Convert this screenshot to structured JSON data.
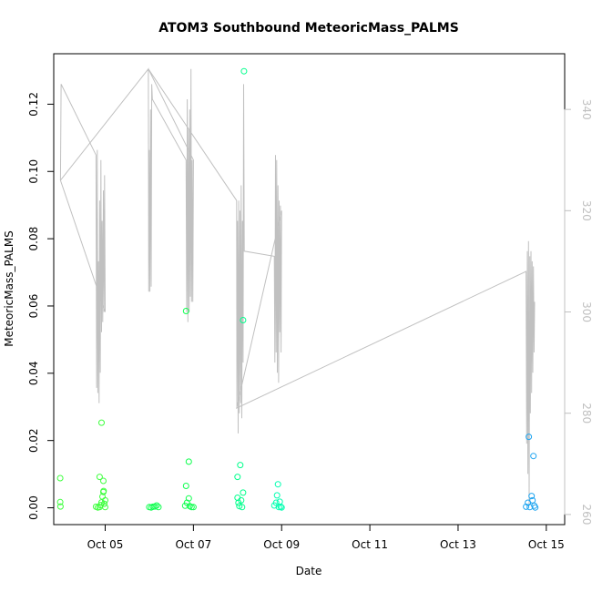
{
  "chart_data": {
    "type": "scatter",
    "title": "ATOM3 Southbound MeteoricMass_PALMS",
    "xlabel": "Date",
    "ylabel": "MeteoricMass_PALMS",
    "x_ticks": [
      "Oct 05",
      "Oct 07",
      "Oct 09",
      "Oct 11",
      "Oct 13",
      "Oct 15"
    ],
    "xlim": [
      "2017-10-03 20:00",
      "2017-10-15 10:00"
    ],
    "ylim": [
      -0.005,
      0.135
    ],
    "y_ticks": [
      "0.00",
      "0.02",
      "0.04",
      "0.06",
      "0.08",
      "0.10",
      "0.12"
    ],
    "y2lim": [
      258,
      351
    ],
    "y2_ticks": [
      "260",
      "280",
      "300",
      "320",
      "340"
    ],
    "grid": false,
    "legend": "none",
    "colors": {
      "axis": "#000000",
      "secondary_axis": "#c0c0c0",
      "line": "#c0c0c0",
      "point_palette": [
        "#3fff3f",
        "#0fff4f",
        "#00ff8c",
        "#00ffb0",
        "#00e6c8",
        "#1ea4f0"
      ]
    },
    "points": [
      {
        "x": "2017-10-03 23:30",
        "y": 0.0088,
        "color": "#3fff3f"
      },
      {
        "x": "2017-10-03 23:30",
        "y": 0.0017,
        "color": "#3fff3f"
      },
      {
        "x": "2017-10-03 23:40",
        "y": 0.0004,
        "color": "#3fff3f"
      },
      {
        "x": "2017-10-04 19:00",
        "y": 0.0003,
        "color": "#3fff3f"
      },
      {
        "x": "2017-10-04 20:00",
        "y": 0.0001,
        "color": "#3fff3f"
      },
      {
        "x": "2017-10-04 21:00",
        "y": 0.0002,
        "color": "#3fff3f"
      },
      {
        "x": "2017-10-04 21:00",
        "y": 0.0092,
        "color": "#3fff3f"
      },
      {
        "x": "2017-10-04 21:30",
        "y": 0.0008,
        "color": "#3fff3f"
      },
      {
        "x": "2017-10-04 22:00",
        "y": 0.0253,
        "color": "#3fff3f"
      },
      {
        "x": "2017-10-04 22:00",
        "y": 0.0016,
        "color": "#3fff3f"
      },
      {
        "x": "2017-10-04 22:30",
        "y": 0.0033,
        "color": "#3fff3f"
      },
      {
        "x": "2017-10-04 23:00",
        "y": 0.0047,
        "color": "#3fff3f"
      },
      {
        "x": "2017-10-04 23:10",
        "y": 0.005,
        "color": "#3fff3f"
      },
      {
        "x": "2017-10-04 23:00",
        "y": 0.008,
        "color": "#3fff3f"
      },
      {
        "x": "2017-10-04 23:30",
        "y": 0.0012,
        "color": "#3fff3f"
      },
      {
        "x": "2017-10-05 00:00",
        "y": 0.0002,
        "color": "#3fff3f"
      },
      {
        "x": "2017-10-05 00:00",
        "y": 0.0022,
        "color": "#3fff3f"
      },
      {
        "x": "2017-10-06 00:00",
        "y": 0.0002,
        "color": "#0fff4f"
      },
      {
        "x": "2017-10-06 01:00",
        "y": 0.0001,
        "color": "#0fff4f"
      },
      {
        "x": "2017-10-06 02:00",
        "y": 0.0003,
        "color": "#0fff4f"
      },
      {
        "x": "2017-10-06 03:00",
        "y": 0.0004,
        "color": "#0fff4f"
      },
      {
        "x": "2017-10-06 04:00",
        "y": 0.0007,
        "color": "#0fff4f"
      },
      {
        "x": "2017-10-06 05:00",
        "y": 0.0002,
        "color": "#0fff4f"
      },
      {
        "x": "2017-10-06 19:30",
        "y": 0.0006,
        "color": "#0fff4f"
      },
      {
        "x": "2017-10-06 20:00",
        "y": 0.0585,
        "color": "#0fff4f"
      },
      {
        "x": "2017-10-06 20:00",
        "y": 0.0065,
        "color": "#0fff4f"
      },
      {
        "x": "2017-10-06 20:30",
        "y": 0.0015,
        "color": "#0fff4f"
      },
      {
        "x": "2017-10-06 21:30",
        "y": 0.0137,
        "color": "#0fff4f"
      },
      {
        "x": "2017-10-06 21:30",
        "y": 0.0028,
        "color": "#0fff4f"
      },
      {
        "x": "2017-10-06 22:00",
        "y": 0.0005,
        "color": "#0fff4f"
      },
      {
        "x": "2017-10-06 23:00",
        "y": 0.0002,
        "color": "#0fff4f"
      },
      {
        "x": "2017-10-07 00:00",
        "y": 0.0002,
        "color": "#0fff4f"
      },
      {
        "x": "2017-10-08 00:00",
        "y": 0.0092,
        "color": "#00ff8c"
      },
      {
        "x": "2017-10-08 00:00",
        "y": 0.003,
        "color": "#00ff8c"
      },
      {
        "x": "2017-10-08 00:30",
        "y": 0.0015,
        "color": "#00ff8c"
      },
      {
        "x": "2017-10-08 01:00",
        "y": 0.0005,
        "color": "#00ff8c"
      },
      {
        "x": "2017-10-08 01:30",
        "y": 0.0127,
        "color": "#00ff8c"
      },
      {
        "x": "2017-10-08 02:00",
        "y": 0.0022,
        "color": "#00ff8c"
      },
      {
        "x": "2017-10-08 02:30",
        "y": 0.0002,
        "color": "#00ff8c"
      },
      {
        "x": "2017-10-08 03:00",
        "y": 0.0045,
        "color": "#00ff8c"
      },
      {
        "x": "2017-10-08 03:00",
        "y": 0.0558,
        "color": "#00ff8c"
      },
      {
        "x": "2017-10-08 03:30",
        "y": 0.1298,
        "color": "#00ff8c"
      },
      {
        "x": "2017-10-08 20:00",
        "y": 0.0007,
        "color": "#00ffb0"
      },
      {
        "x": "2017-10-08 21:00",
        "y": 0.0015,
        "color": "#00ffb0"
      },
      {
        "x": "2017-10-08 21:30",
        "y": 0.0037,
        "color": "#00ffb0"
      },
      {
        "x": "2017-10-08 22:00",
        "y": 0.007,
        "color": "#00ffb0"
      },
      {
        "x": "2017-10-08 22:30",
        "y": 0.0002,
        "color": "#00ffb0"
      },
      {
        "x": "2017-10-08 23:00",
        "y": 0.0018,
        "color": "#00ffb0"
      },
      {
        "x": "2017-10-08 23:30",
        "y": 0.0003,
        "color": "#00ffb0"
      },
      {
        "x": "2017-10-09 00:00",
        "y": 0.0001,
        "color": "#00ffb0"
      },
      {
        "x": "2017-10-14 13:00",
        "y": 0.0003,
        "color": "#1ea4f0"
      },
      {
        "x": "2017-10-14 14:00",
        "y": 0.0015,
        "color": "#1ea4f0"
      },
      {
        "x": "2017-10-14 14:30",
        "y": 0.0211,
        "color": "#1ea4f0"
      },
      {
        "x": "2017-10-14 15:00",
        "y": 0.0002,
        "color": "#1ea4f0"
      },
      {
        "x": "2017-10-14 16:00",
        "y": 0.0035,
        "color": "#1ea4f0"
      },
      {
        "x": "2017-10-14 16:30",
        "y": 0.0022,
        "color": "#1ea4f0"
      },
      {
        "x": "2017-10-14 17:00",
        "y": 0.0154,
        "color": "#1ea4f0"
      },
      {
        "x": "2017-10-14 17:30",
        "y": 0.0006,
        "color": "#1ea4f0"
      },
      {
        "x": "2017-10-14 18:00",
        "y": 0.0001,
        "color": "#1ea4f0"
      }
    ],
    "line": [
      [
        "2017-10-03 23:40",
        326
      ],
      [
        "2017-10-04 00:00",
        345
      ],
      [
        "2017-10-04 19:00",
        331
      ],
      [
        "2017-10-04 19:20",
        285
      ],
      [
        "2017-10-04 19:40",
        332
      ],
      [
        "2017-10-04 20:00",
        284
      ],
      [
        "2017-10-04 20:20",
        310
      ],
      [
        "2017-10-04 20:40",
        282
      ],
      [
        "2017-10-04 21:00",
        322
      ],
      [
        "2017-10-04 21:20",
        288
      ],
      [
        "2017-10-04 21:40",
        330
      ],
      [
        "2017-10-04 22:00",
        296
      ],
      [
        "2017-10-04 22:20",
        318
      ],
      [
        "2017-10-04 22:40",
        298
      ],
      [
        "2017-10-04 23:00",
        324
      ],
      [
        "2017-10-04 23:20",
        300
      ],
      [
        "2017-10-04 23:40",
        327
      ],
      [
        "2017-10-05 00:00",
        300
      ],
      [
        "2017-10-03 23:40",
        326
      ],
      [
        "2017-10-05 23:30",
        348
      ],
      [
        "2017-10-05 23:40",
        304
      ],
      [
        "2017-10-06 00:00",
        332
      ],
      [
        "2017-10-06 00:20",
        304
      ],
      [
        "2017-10-06 00:40",
        340
      ],
      [
        "2017-10-06 01:00",
        305
      ],
      [
        "2017-10-06 01:20",
        345
      ],
      [
        "2017-10-06 01:40",
        342
      ],
      [
        "2017-10-06 20:00",
        330
      ],
      [
        "2017-10-06 20:20",
        300
      ],
      [
        "2017-10-06 20:40",
        342
      ],
      [
        "2017-10-06 21:00",
        298
      ],
      [
        "2017-10-06 21:20",
        336
      ],
      [
        "2017-10-06 21:40",
        300
      ],
      [
        "2017-10-06 22:00",
        340
      ],
      [
        "2017-10-06 22:20",
        303
      ],
      [
        "2017-10-06 22:40",
        348
      ],
      [
        "2017-10-06 23:00",
        302
      ],
      [
        "2017-10-06 23:20",
        330
      ],
      [
        "2017-10-06 23:40",
        302
      ],
      [
        "2017-10-07 00:00",
        330
      ],
      [
        "2017-10-05 23:30",
        348
      ],
      [
        "2017-10-07 23:30",
        322
      ],
      [
        "2017-10-07 23:40",
        281
      ],
      [
        "2017-10-08 00:00",
        318
      ],
      [
        "2017-10-08 00:20",
        276
      ],
      [
        "2017-10-08 00:40",
        322
      ],
      [
        "2017-10-08 01:00",
        280
      ],
      [
        "2017-10-08 01:20",
        320
      ],
      [
        "2017-10-08 01:40",
        282
      ],
      [
        "2017-10-08 02:00",
        325
      ],
      [
        "2017-10-08 02:20",
        279
      ],
      [
        "2017-10-08 02:40",
        318
      ],
      [
        "2017-10-08 03:00",
        290
      ],
      [
        "2017-10-08 03:20",
        345
      ],
      [
        "2017-10-08 03:40",
        312
      ],
      [
        "2017-10-08 20:00",
        311
      ],
      [
        "2017-10-08 20:20",
        290
      ],
      [
        "2017-10-08 20:40",
        331
      ],
      [
        "2017-10-08 21:00",
        292
      ],
      [
        "2017-10-08 21:20",
        330
      ],
      [
        "2017-10-08 21:40",
        288
      ],
      [
        "2017-10-08 22:00",
        325
      ],
      [
        "2017-10-08 22:20",
        286
      ],
      [
        "2017-10-08 22:40",
        322
      ],
      [
        "2017-10-08 23:00",
        296
      ],
      [
        "2017-10-08 23:20",
        321
      ],
      [
        "2017-10-08 23:40",
        292
      ],
      [
        "2017-10-09 00:00",
        320
      ],
      [
        "2017-10-07 23:30",
        281
      ],
      [
        "2017-10-14 13:00",
        308
      ],
      [
        "2017-10-14 13:20",
        274
      ],
      [
        "2017-10-14 13:40",
        312
      ],
      [
        "2017-10-14 14:00",
        268
      ],
      [
        "2017-10-14 14:20",
        314
      ],
      [
        "2017-10-14 14:40",
        262
      ],
      [
        "2017-10-14 15:00",
        311
      ],
      [
        "2017-10-14 15:20",
        280
      ],
      [
        "2017-10-14 15:40",
        312
      ],
      [
        "2017-10-14 16:00",
        284
      ],
      [
        "2017-10-14 16:20",
        310
      ],
      [
        "2017-10-14 16:40",
        288
      ],
      [
        "2017-10-14 17:00",
        309
      ],
      [
        "2017-10-14 17:20",
        292
      ],
      [
        "2017-10-14 17:40",
        302
      ]
    ]
  }
}
